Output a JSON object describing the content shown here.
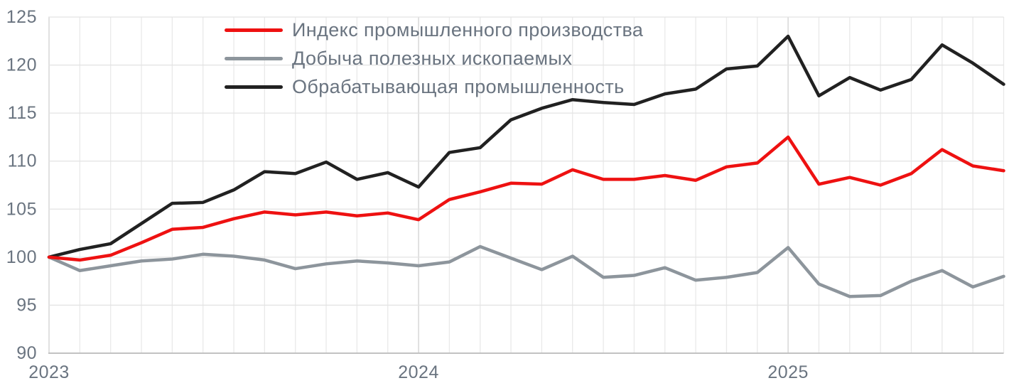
{
  "chart_data": {
    "type": "line",
    "title": "",
    "grid": true,
    "legend_position": "top-left-inside",
    "x_axis": {
      "tick_labels": [
        "2023",
        "2024",
        "2025"
      ],
      "tick_month_indices": [
        0,
        12,
        24
      ],
      "points_per_year": 12,
      "n_points": 32
    },
    "y_axis": {
      "min": 90,
      "max": 125,
      "step": 5,
      "ticks": [
        90,
        95,
        100,
        105,
        110,
        115,
        120,
        125
      ]
    },
    "series": [
      {
        "name": "Индекс промышленного производства",
        "color": "#ee1111",
        "values": [
          100,
          99.7,
          100.2,
          101.5,
          102.9,
          103.1,
          104.0,
          104.7,
          104.4,
          104.7,
          104.3,
          104.6,
          103.9,
          106.0,
          106.8,
          107.7,
          107.6,
          109.1,
          108.1,
          108.1,
          108.5,
          108.0,
          109.4,
          109.8,
          112.5,
          107.6,
          108.3,
          107.5,
          108.7,
          111.2,
          109.5,
          109.0
        ]
      },
      {
        "name": "Добыча полезных ископаемых",
        "color": "#8d959c",
        "values": [
          100,
          98.6,
          99.1,
          99.6,
          99.8,
          100.3,
          100.1,
          99.7,
          98.8,
          99.3,
          99.6,
          99.4,
          99.1,
          99.5,
          101.1,
          99.9,
          98.7,
          100.1,
          97.9,
          98.1,
          98.9,
          97.6,
          97.9,
          98.4,
          101.0,
          97.2,
          95.9,
          96.0,
          97.5,
          98.6,
          96.9,
          98.0
        ]
      },
      {
        "name": "Обрабатывающая промышленность",
        "color": "#212121",
        "values": [
          100,
          100.8,
          101.4,
          103.5,
          105.6,
          105.7,
          107.0,
          108.9,
          108.7,
          109.9,
          108.1,
          108.8,
          107.3,
          110.9,
          111.4,
          114.3,
          115.5,
          116.4,
          116.1,
          115.9,
          117.0,
          117.5,
          119.6,
          119.9,
          123.0,
          116.8,
          118.7,
          117.4,
          118.5,
          122.1,
          120.2,
          118.0
        ]
      }
    ],
    "colors": {
      "background": "#ffffff",
      "text": "#6a7480",
      "grid_minor": "#e9e9e9",
      "grid_horizontal": "#e3e3e3",
      "grid_year": "#d9d9d9",
      "axis_bottom": "#c2c2c2",
      "axis_left": "#d9d9d9"
    }
  }
}
